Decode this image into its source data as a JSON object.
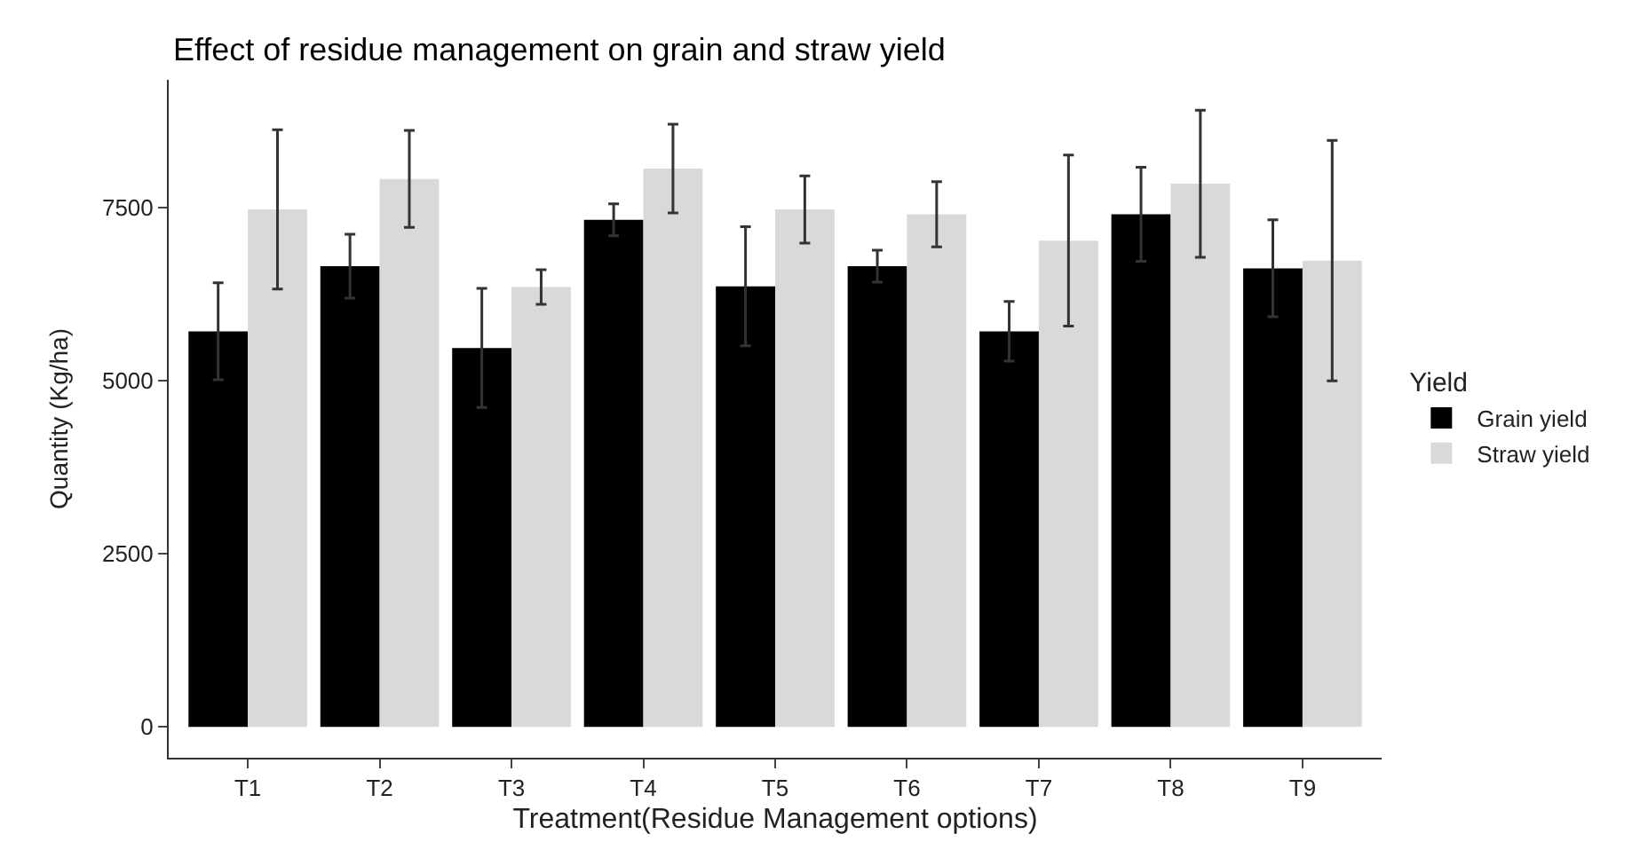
{
  "chart_data": {
    "type": "bar",
    "title": "Effect of residue management on grain and straw yield",
    "xlabel": "Treatment(Residue Management options)",
    "ylabel": "Quantity (Kg/ha)",
    "legend_title": "Yield",
    "categories": [
      "T1",
      "T2",
      "T3",
      "T4",
      "T5",
      "T6",
      "T7",
      "T8",
      "T9"
    ],
    "series": [
      {
        "name": "Grain yield",
        "color": "#000000",
        "values": [
          5710,
          6650,
          5470,
          7320,
          6360,
          6650,
          5710,
          7400,
          6620
        ],
        "errors": [
          700,
          460,
          860,
          230,
          860,
          230,
          430,
          680,
          700
        ]
      },
      {
        "name": "Straw yield",
        "color": "#d9d9d9",
        "values": [
          7470,
          7910,
          6350,
          8060,
          7470,
          7400,
          7020,
          7840,
          6730
        ],
        "errors": [
          1150,
          700,
          250,
          640,
          485,
          470,
          1235,
          1060,
          1735
        ]
      }
    ],
    "ylim": [
      -445,
      9340
    ],
    "yticks": [
      0,
      2500,
      5000,
      7500
    ],
    "legend": "right"
  }
}
